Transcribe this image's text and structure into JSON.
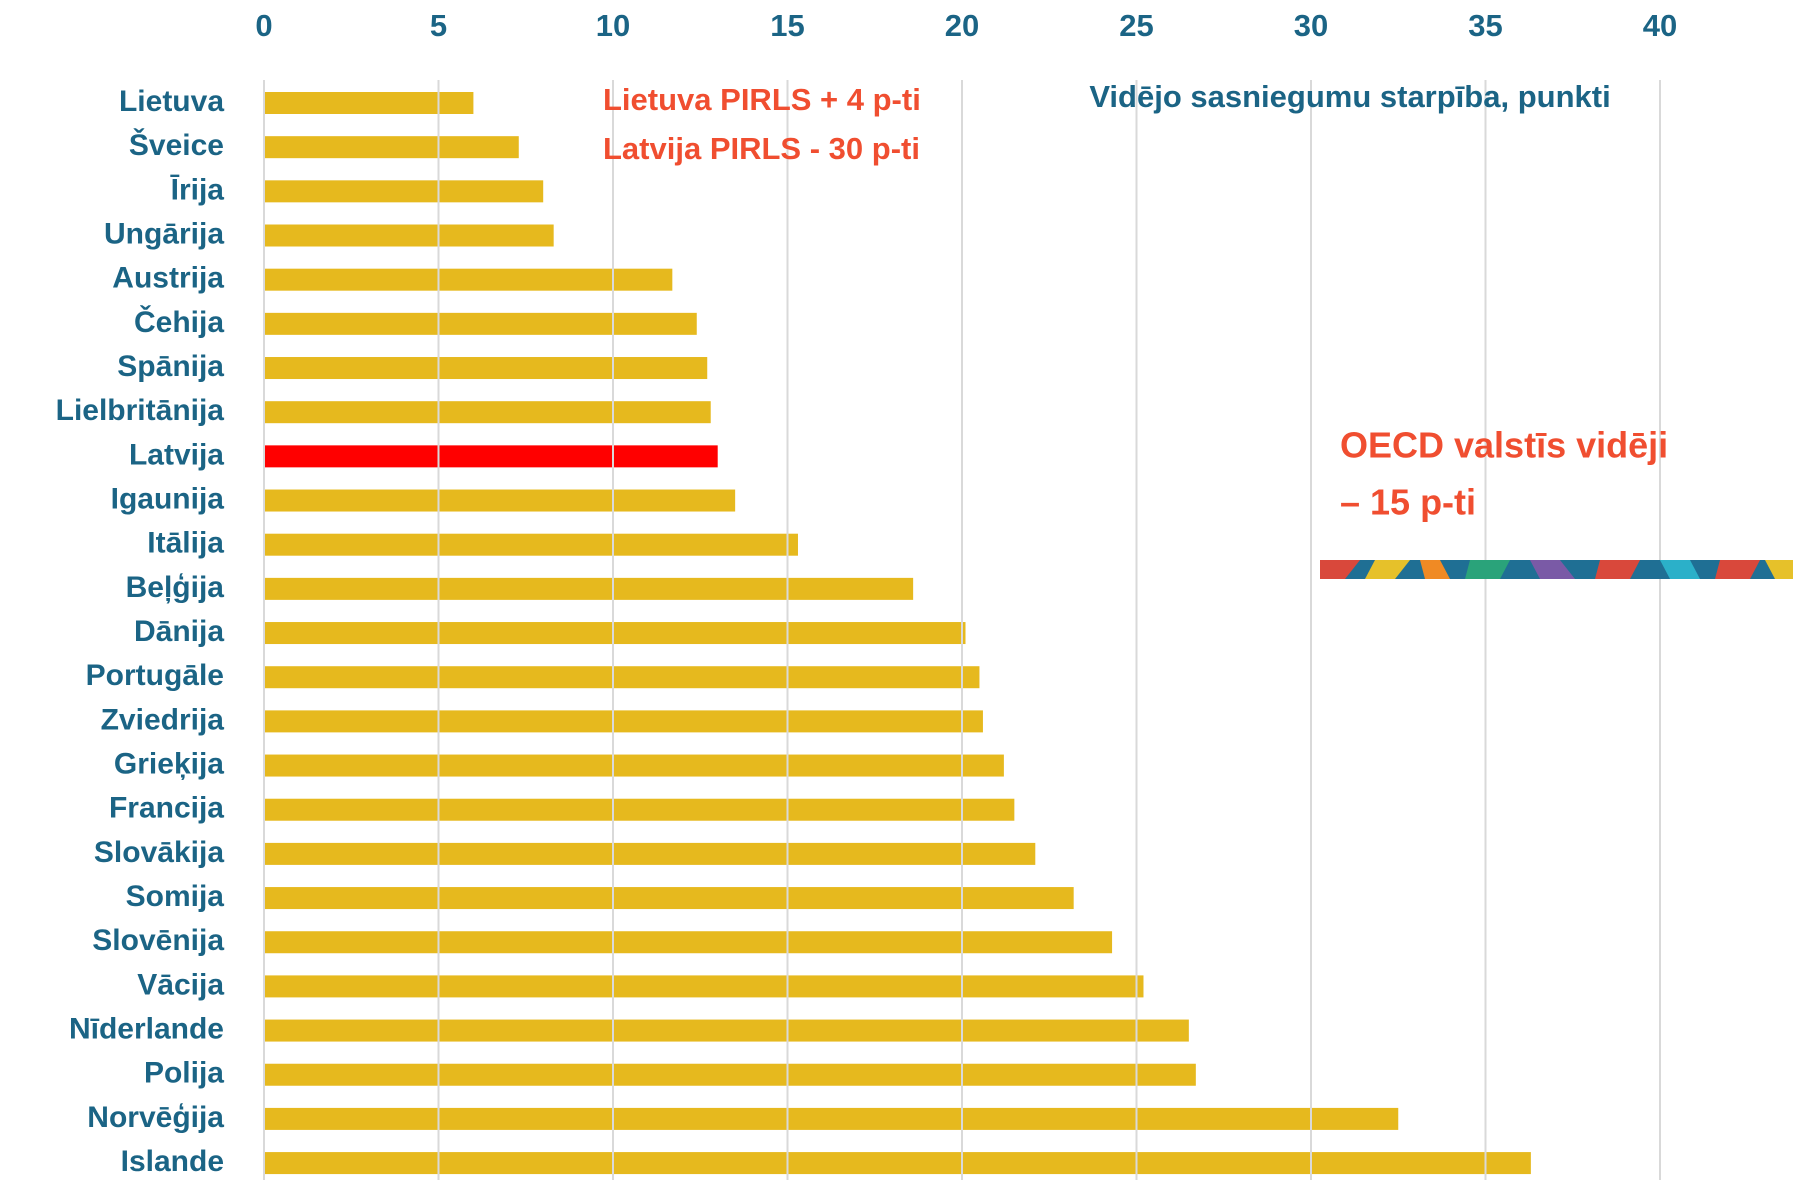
{
  "chart_data": {
    "type": "barh",
    "categories": [
      "Lietuva",
      "Šveice",
      "Īrija",
      "Ungārija",
      "Austrija",
      "Čehija",
      "Spānija",
      "Lielbritānija",
      "Latvija",
      "Igaunija",
      "Itālija",
      "Beļģija",
      "Dānija",
      "Portugāle",
      "Zviedrija",
      "Grieķija",
      "Francija",
      "Slovākija",
      "Somija",
      "Slovēnija",
      "Vācija",
      "Nīderlande",
      "Polija",
      "Norvēģija",
      "Islande"
    ],
    "values": [
      6.0,
      7.3,
      8.0,
      8.3,
      11.7,
      12.4,
      12.7,
      12.8,
      13.0,
      13.5,
      15.3,
      18.6,
      20.1,
      20.5,
      20.6,
      21.2,
      21.5,
      22.1,
      23.2,
      24.3,
      25.2,
      26.5,
      26.7,
      32.5,
      36.3
    ],
    "colors": [
      "#e6b91e",
      "#e6b91e",
      "#e6b91e",
      "#e6b91e",
      "#e6b91e",
      "#e6b91e",
      "#e6b91e",
      "#e6b91e",
      "#ff0000",
      "#e6b91e",
      "#e6b91e",
      "#e6b91e",
      "#e6b91e",
      "#e6b91e",
      "#e6b91e",
      "#e6b91e",
      "#e6b91e",
      "#e6b91e",
      "#e6b91e",
      "#e6b91e",
      "#e6b91e",
      "#e6b91e",
      "#e6b91e",
      "#e6b91e",
      "#e6b91e"
    ],
    "x_label": "Vidējo sasniegumu starpība, punkti",
    "xlim": [
      0,
      40
    ],
    "xticks": [
      0,
      5,
      10,
      15,
      20,
      25,
      30,
      35,
      40
    ],
    "grid": true,
    "annotations": [
      "Lietuva PIRLS  + 4 p-ti",
      "Latvija  PIRLS  - 30 p-ti",
      "OECD valstīs vidēji",
      "– 15 p-ti"
    ]
  }
}
